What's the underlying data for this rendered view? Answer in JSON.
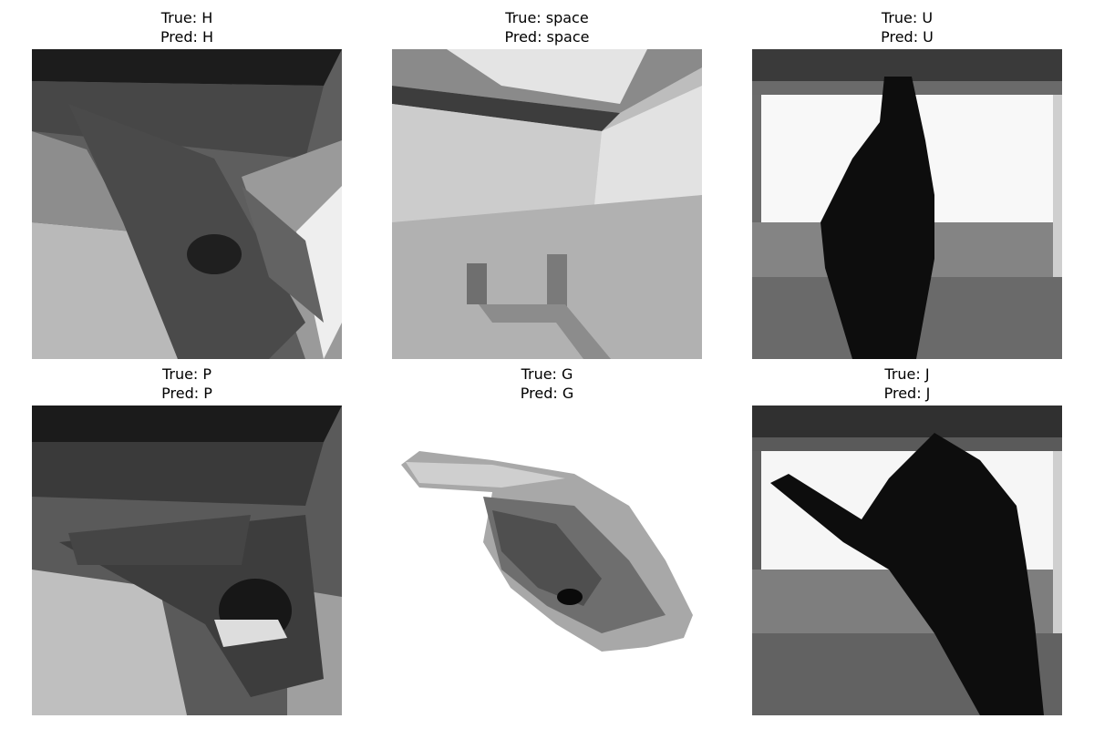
{
  "panels": [
    {
      "true_label": "True: H",
      "pred_label": "Pred: H",
      "image": "hand-sign-h-image"
    },
    {
      "true_label": "True: space",
      "pred_label": "Pred: space",
      "image": "hand-sign-space-image"
    },
    {
      "true_label": "True: U",
      "pred_label": "Pred: U",
      "image": "hand-sign-u-image"
    },
    {
      "true_label": "True: P",
      "pred_label": "Pred: P",
      "image": "hand-sign-p-image"
    },
    {
      "true_label": "True: G",
      "pred_label": "Pred: G",
      "image": "hand-sign-g-image"
    },
    {
      "true_label": "True: J",
      "pred_label": "Pred: J",
      "image": "hand-sign-j-image"
    }
  ]
}
